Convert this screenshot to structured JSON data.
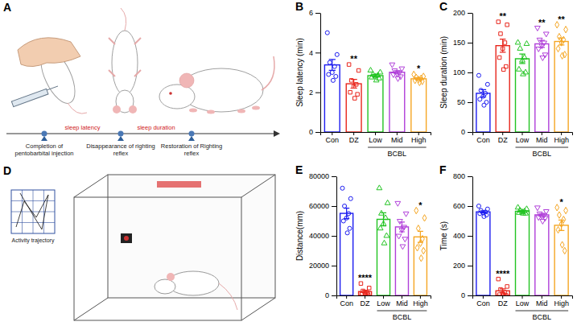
{
  "diagrams": {
    "timeline": {
      "panel": "A",
      "events": [
        "Completion of pentobarbital injection",
        "Disappearance of righting reflex",
        "Restoration of Righting reflex"
      ],
      "intervals": [
        "sleep latency",
        "sleep duration"
      ]
    },
    "open_field": {
      "panel": "D",
      "trajectory_label": "Activity trajectory"
    }
  },
  "chart_data": [
    {
      "panel": "B",
      "type": "bar",
      "y_label": "Sleep latency (min)",
      "categories": [
        "Con",
        "DZ",
        "Low",
        "Mid",
        "High"
      ],
      "group_label": "BCBL",
      "group_members": [
        "Low",
        "Mid",
        "High"
      ],
      "values": [
        3.38,
        2.43,
        2.84,
        3.01,
        2.68
      ],
      "errors": [
        0.27,
        0.22,
        0.06,
        0.08,
        0.05
      ],
      "points": [
        [
          5.0,
          3.9,
          3.5,
          3.3,
          3.0,
          2.9,
          2.8,
          2.6
        ],
        [
          3.4,
          3.1,
          2.6,
          2.4,
          2.3,
          2.0,
          1.9,
          1.7
        ],
        [
          3.1,
          3.0,
          2.9,
          2.85,
          2.8,
          2.75,
          2.7,
          2.6
        ],
        [
          3.4,
          3.2,
          3.1,
          3.0,
          2.95,
          2.9,
          2.8,
          2.7
        ],
        [
          2.9,
          2.8,
          2.75,
          2.7,
          2.65,
          2.6,
          2.55,
          2.5
        ]
      ],
      "significance": [
        null,
        "**",
        null,
        null,
        "*"
      ],
      "colors": [
        "#1c1cf0",
        "#e8261c",
        "#22c422",
        "#b03fd9",
        "#f5a623"
      ],
      "ylim": [
        0,
        6
      ],
      "yticks": [
        0,
        2,
        4,
        6
      ],
      "grid": false
    },
    {
      "panel": "C",
      "type": "bar",
      "y_label": "Sleep duration (min)",
      "categories": [
        "Con",
        "DZ",
        "Low",
        "Mid",
        "High"
      ],
      "group_label": "BCBL",
      "group_members": [
        "Low",
        "Mid",
        "High"
      ],
      "values": [
        65,
        145,
        123,
        148,
        152
      ],
      "errors": [
        6,
        11,
        8,
        6,
        6
      ],
      "points": [
        [
          95,
          80,
          70,
          65,
          60,
          55,
          50,
          45
        ],
        [
          185,
          180,
          165,
          150,
          140,
          125,
          110,
          105
        ],
        [
          150,
          148,
          140,
          125,
          120,
          105,
          100,
          97
        ],
        [
          175,
          165,
          155,
          150,
          145,
          140,
          130,
          125
        ],
        [
          180,
          172,
          160,
          155,
          150,
          140,
          130,
          128
        ]
      ],
      "significance": [
        null,
        "**",
        null,
        "**",
        "**"
      ],
      "colors": [
        "#1c1cf0",
        "#e8261c",
        "#22c422",
        "#b03fd9",
        "#f5a623"
      ],
      "ylim": [
        0,
        200
      ],
      "yticks": [
        0,
        50,
        100,
        150,
        200
      ],
      "grid": false
    },
    {
      "panel": "E",
      "type": "bar",
      "y_label": "Distance(mm)",
      "categories": [
        "Con",
        "DZ",
        "Low",
        "Mid",
        "High"
      ],
      "group_label": "BCBL",
      "group_members": [
        "Low",
        "Mid",
        "High"
      ],
      "values": [
        55100,
        2600,
        51100,
        46000,
        39300
      ],
      "errors": [
        3500,
        900,
        4400,
        3300,
        3700
      ],
      "points": [
        [
          72000,
          65000,
          60000,
          55000,
          52000,
          50000,
          45000,
          42000
        ],
        [
          8000,
          5000,
          3000,
          2000,
          1500,
          1000,
          500,
          0
        ],
        [
          72000,
          62000,
          55000,
          52000,
          48000,
          45000,
          40000,
          35000
        ],
        [
          62000,
          55000,
          50000,
          46000,
          44000,
          40000,
          38000,
          33000
        ],
        [
          57000,
          52000,
          45000,
          38000,
          35000,
          32000,
          30000,
          25000
        ]
      ],
      "significance": [
        null,
        "****",
        null,
        null,
        "*"
      ],
      "colors": [
        "#1c1cf0",
        "#e8261c",
        "#22c422",
        "#b03fd9",
        "#f5a623"
      ],
      "ylim": [
        0,
        80000
      ],
      "yticks": [
        0,
        20000,
        40000,
        60000,
        80000
      ],
      "grid": false
    },
    {
      "panel": "F",
      "type": "bar",
      "y_label": "Time (s)",
      "categories": [
        "Con",
        "DZ",
        "Low",
        "Mid",
        "High"
      ],
      "group_label": "BCBL",
      "group_members": [
        "Low",
        "Mid",
        "High"
      ],
      "values": [
        561,
        31,
        565,
        541,
        471
      ],
      "errors": [
        8,
        13,
        5,
        9,
        35
      ],
      "points": [
        [
          600,
          580,
          570,
          560,
          555,
          550,
          540,
          530
        ],
        [
          110,
          60,
          40,
          20,
          10,
          5,
          0,
          0
        ],
        [
          590,
          580,
          570,
          565,
          560,
          555,
          550,
          550
        ],
        [
          590,
          565,
          550,
          540,
          535,
          525,
          520,
          500
        ],
        [
          590,
          570,
          540,
          510,
          480,
          440,
          300,
          340
        ]
      ],
      "significance": [
        null,
        "****",
        null,
        null,
        "*"
      ],
      "colors": [
        "#1c1cf0",
        "#e8261c",
        "#22c422",
        "#b03fd9",
        "#f5a623"
      ],
      "ylim": [
        0,
        800
      ],
      "yticks": [
        0,
        200,
        400,
        600,
        800
      ],
      "grid": false
    }
  ]
}
